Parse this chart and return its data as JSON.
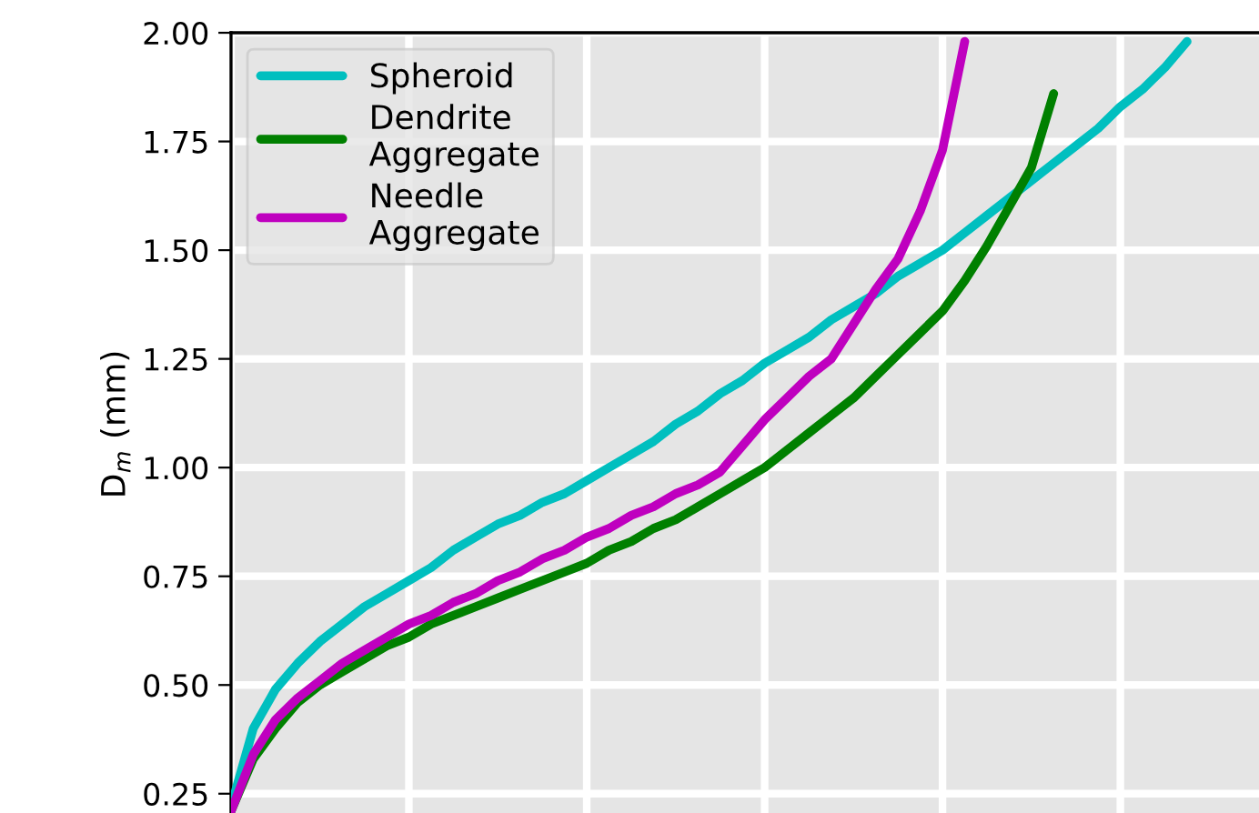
{
  "chart_data": {
    "type": "line",
    "ylabel": "D$_{m}$ (mm)",
    "categories": [
      null,
      null,
      null,
      null,
      null,
      null,
      null,
      null,
      null,
      null,
      null,
      null,
      null,
      null,
      null,
      null,
      null,
      null,
      null,
      null,
      null,
      null,
      null,
      null,
      null,
      null,
      null,
      null,
      null,
      null,
      null,
      null,
      null,
      null,
      null,
      null,
      null,
      null,
      null,
      null,
      null,
      null,
      null,
      null,
      null,
      null,
      null,
      null
    ],
    "series": [
      {
        "name": "Spheroid",
        "color": "#00bfbf",
        "values": [
          0.22,
          0.4,
          0.49,
          0.55,
          0.6,
          0.64,
          0.68,
          0.71,
          0.74,
          0.77,
          0.81,
          0.84,
          0.87,
          0.89,
          0.92,
          0.94,
          0.97,
          1.0,
          1.03,
          1.06,
          1.1,
          1.13,
          1.17,
          1.2,
          1.24,
          1.27,
          1.3,
          1.34,
          1.37,
          1.4,
          1.44,
          1.47,
          1.5,
          1.54,
          1.58,
          1.62,
          1.66,
          1.7,
          1.74,
          1.78,
          1.83,
          1.87,
          1.92,
          1.98,
          null,
          null,
          null,
          null
        ]
      },
      {
        "name": "Dendrite\nAggregate",
        "color": "#008000",
        "values": [
          0.21,
          0.33,
          0.4,
          0.46,
          0.5,
          0.53,
          0.56,
          0.59,
          0.61,
          0.64,
          0.66,
          0.68,
          0.7,
          0.72,
          0.74,
          0.76,
          0.78,
          0.81,
          0.83,
          0.86,
          0.88,
          0.91,
          0.94,
          0.97,
          1.0,
          1.04,
          1.08,
          1.12,
          1.16,
          1.21,
          1.26,
          1.31,
          1.36,
          1.43,
          1.51,
          1.6,
          1.69,
          1.86,
          null,
          null,
          null,
          null,
          null,
          null,
          null,
          null,
          null,
          null
        ]
      },
      {
        "name": "Needle\nAggregate",
        "color": "#bf00bf",
        "values": [
          0.21,
          0.34,
          0.42,
          0.47,
          0.51,
          0.55,
          0.58,
          0.61,
          0.64,
          0.66,
          0.69,
          0.71,
          0.74,
          0.76,
          0.79,
          0.81,
          0.84,
          0.86,
          0.89,
          0.91,
          0.94,
          0.96,
          0.99,
          1.05,
          1.11,
          1.16,
          1.21,
          1.25,
          1.33,
          1.41,
          1.48,
          1.59,
          1.73,
          1.98,
          null,
          null,
          null,
          null,
          null,
          null,
          null,
          null,
          null,
          null,
          null,
          null,
          null,
          null
        ]
      }
    ],
    "ylim": [
      0.2,
      2.0
    ],
    "yticks": [
      0.25,
      {
        "value": 0.5,
        "label": "0.50"
      },
      0.75,
      {
        "value": 1.0,
        "label": "1.00"
      },
      1.25,
      {
        "value": 1.5,
        "label": "1.50"
      },
      1.75,
      {
        "value": 2.0,
        "label": "2.00"
      }
    ],
    "tick_labels": "y",
    "grid": true,
    "legend": "top left",
    "line_style": "solid",
    "marker": "none"
  }
}
